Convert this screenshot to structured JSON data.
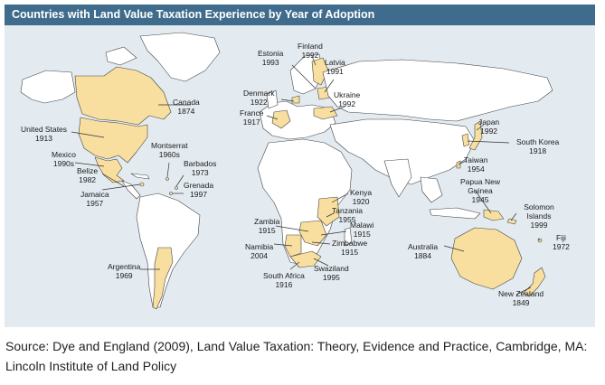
{
  "title": "Countries with Land Value Taxation Experience by Year of Adoption",
  "colors": {
    "title_bar": "#3f6c8c",
    "ocean": "#e3ebf1",
    "land": "#ffffff",
    "adopted": "#f8df9f",
    "border": "#333333"
  },
  "countries": [
    {
      "id": "finland",
      "name": "Finland",
      "year": "1992"
    },
    {
      "id": "estonia",
      "name": "Estonia",
      "year": "1993"
    },
    {
      "id": "latvia",
      "name": "Latvia",
      "year": "1991"
    },
    {
      "id": "denmark",
      "name": "Denmark",
      "year": "1922"
    },
    {
      "id": "ukraine",
      "name": "Ukraine",
      "year": "1992"
    },
    {
      "id": "france",
      "name": "France",
      "year": "1917"
    },
    {
      "id": "canada",
      "name": "Canada",
      "year": "1874"
    },
    {
      "id": "united-states",
      "name": "United States",
      "year": "1913"
    },
    {
      "id": "montserrat",
      "name": "Montserrat",
      "year": "1960s"
    },
    {
      "id": "mexico",
      "name": "Mexico",
      "year": "1990s"
    },
    {
      "id": "barbados",
      "name": "Barbados",
      "year": "1973"
    },
    {
      "id": "belize",
      "name": "Belize",
      "year": "1982"
    },
    {
      "id": "grenada",
      "name": "Grenada",
      "year": "1997"
    },
    {
      "id": "jamaica",
      "name": "Jamaica",
      "year": "1957"
    },
    {
      "id": "japan",
      "name": "Japan",
      "year": "1992"
    },
    {
      "id": "south-korea",
      "name": "South Korea",
      "year": "1918"
    },
    {
      "id": "taiwan",
      "name": "Taiwan",
      "year": "1954"
    },
    {
      "id": "kenya",
      "name": "Kenya",
      "year": "1920"
    },
    {
      "id": "papua-new-guinea",
      "name": "Papua New Guinea",
      "year": "1945"
    },
    {
      "id": "tanzania",
      "name": "Tanzania",
      "year": "1955"
    },
    {
      "id": "zambia",
      "name": "Zambia",
      "year": "1915"
    },
    {
      "id": "malawi",
      "name": "Malawi",
      "year": "1915"
    },
    {
      "id": "solomon-islands",
      "name": "Solomon Islands",
      "year": "1999"
    },
    {
      "id": "zimbabwe",
      "name": "Zimbabwe",
      "year": "1915"
    },
    {
      "id": "namibia",
      "name": "Namibia",
      "year": "2004"
    },
    {
      "id": "fiji",
      "name": "Fiji",
      "year": "1972"
    },
    {
      "id": "australia",
      "name": "Australia",
      "year": "1884"
    },
    {
      "id": "argentina",
      "name": "Argentina",
      "year": "1969"
    },
    {
      "id": "south-africa",
      "name": "South Africa",
      "year": "1916"
    },
    {
      "id": "swaziland",
      "name": "Swaziland",
      "year": "1995"
    },
    {
      "id": "new-zealand",
      "name": "New Zealand",
      "year": "1849"
    }
  ],
  "source": "Source: Dye and England (2009), Land Value Taxation: Theory, Evidence and Practice, Cambridge, MA: Lincoln Institute of Land Policy"
}
